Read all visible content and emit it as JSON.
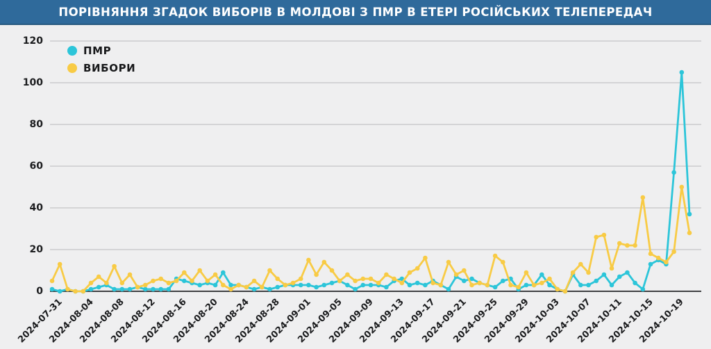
{
  "header": {
    "title": "ПОРІВНЯННЯ ЗГАДОК ВИБОРІВ В МОЛДОВІ З ПМР В ЕТЕРІ РОСІЙСЬКИХ ТЕЛЕПЕРЕДАЧ"
  },
  "legend": {
    "items": [
      {
        "label": "ПМР",
        "color": "#2cc5d9"
      },
      {
        "label": "ВИБОРИ",
        "color": "#f8cb45"
      }
    ]
  },
  "colors": {
    "background": "#efeff0",
    "header_bar": "#2f6a9b",
    "header_text": "#ffffff",
    "gridline": "#c3c3c5",
    "axis_line": "#3f4042",
    "tick_text": "#1b1c1e",
    "series_pmr": "#2cc5d9",
    "series_vybory": "#f8cb45"
  },
  "chart_data": {
    "type": "line",
    "title": "ПОРІВНЯННЯ ЗГАДОК ВИБОРІВ В МОЛДОВІ З ПМР В ЕТЕРІ РОСІЙСЬКИХ ТЕЛЕПЕРЕДАЧ",
    "xlabel": "",
    "ylabel": "",
    "ylim": [
      0,
      120
    ],
    "y_ticks": [
      0,
      20,
      40,
      60,
      80,
      100,
      120
    ],
    "grid": "horizontal",
    "legend_position": "top-left",
    "markers": true,
    "x_tick_labels": [
      "2024-07-31",
      "2024-08-04",
      "2024-08-08",
      "2024-08-12",
      "2024-08-16",
      "2024-08-20",
      "2024-08-24",
      "2024-08-28",
      "2024-09-01",
      "2024-09-05",
      "2024-09-09",
      "2024-09-13",
      "2024-09-17",
      "2024-09-21",
      "2024-09-25",
      "2024-09-29",
      "2024-10-03",
      "2024-10-07",
      "2024-10-11",
      "2024-10-15",
      "2024-10-19"
    ],
    "x_tick_every": 4,
    "x": [
      "2024-07-31",
      "2024-08-01",
      "2024-08-02",
      "2024-08-03",
      "2024-08-04",
      "2024-08-05",
      "2024-08-06",
      "2024-08-07",
      "2024-08-08",
      "2024-08-09",
      "2024-08-10",
      "2024-08-11",
      "2024-08-12",
      "2024-08-13",
      "2024-08-14",
      "2024-08-15",
      "2024-08-16",
      "2024-08-17",
      "2024-08-18",
      "2024-08-19",
      "2024-08-20",
      "2024-08-21",
      "2024-08-22",
      "2024-08-23",
      "2024-08-24",
      "2024-08-25",
      "2024-08-26",
      "2024-08-27",
      "2024-08-28",
      "2024-08-29",
      "2024-08-30",
      "2024-08-31",
      "2024-09-01",
      "2024-09-02",
      "2024-09-03",
      "2024-09-04",
      "2024-09-05",
      "2024-09-06",
      "2024-09-07",
      "2024-09-08",
      "2024-09-09",
      "2024-09-10",
      "2024-09-11",
      "2024-09-12",
      "2024-09-13",
      "2024-09-14",
      "2024-09-15",
      "2024-09-16",
      "2024-09-17",
      "2024-09-18",
      "2024-09-19",
      "2024-09-20",
      "2024-09-21",
      "2024-09-22",
      "2024-09-23",
      "2024-09-24",
      "2024-09-25",
      "2024-09-26",
      "2024-09-27",
      "2024-09-28",
      "2024-09-29",
      "2024-09-30",
      "2024-10-01",
      "2024-10-02",
      "2024-10-03",
      "2024-10-04",
      "2024-10-05",
      "2024-10-06",
      "2024-10-07",
      "2024-10-08",
      "2024-10-09",
      "2024-10-10",
      "2024-10-11",
      "2024-10-12",
      "2024-10-13",
      "2024-10-14",
      "2024-10-15",
      "2024-10-16",
      "2024-10-17",
      "2024-10-18",
      "2024-10-19",
      "2024-10-20",
      "2024-10-21"
    ],
    "series": [
      {
        "name": "ПМР",
        "color": "#2cc5d9",
        "values": [
          1,
          0,
          1,
          0,
          0,
          1,
          2,
          3,
          1,
          1,
          1,
          2,
          1,
          1,
          1,
          1,
          6,
          5,
          4,
          3,
          4,
          3,
          9,
          3,
          3,
          2,
          1,
          2,
          1,
          2,
          3,
          3,
          3,
          3,
          2,
          3,
          4,
          5,
          3,
          1,
          3,
          3,
          3,
          2,
          5,
          6,
          3,
          4,
          3,
          5,
          3,
          1,
          7,
          5,
          6,
          4,
          3,
          2,
          5,
          6,
          1,
          3,
          3,
          8,
          3,
          1,
          0,
          8,
          3,
          3,
          5,
          8,
          3,
          7,
          9,
          4,
          1,
          13,
          15,
          13,
          57,
          105,
          37
        ]
      },
      {
        "name": "ВИБОРИ",
        "color": "#f8cb45",
        "values": [
          5,
          13,
          1,
          0,
          0,
          4,
          7,
          4,
          12,
          4,
          8,
          2,
          3,
          5,
          6,
          4,
          5,
          9,
          5,
          10,
          5,
          8,
          3,
          1,
          3,
          2,
          5,
          2,
          10,
          6,
          3,
          4,
          6,
          15,
          8,
          14,
          10,
          5,
          8,
          5,
          6,
          6,
          4,
          8,
          6,
          4,
          9,
          11,
          16,
          4,
          3,
          14,
          8,
          10,
          3,
          4,
          3,
          17,
          14,
          3,
          2,
          9,
          3,
          4,
          6,
          1,
          0,
          9,
          13,
          9,
          26,
          27,
          11,
          23,
          22,
          22,
          45,
          18,
          16,
          14,
          19,
          50,
          28
        ]
      }
    ]
  }
}
